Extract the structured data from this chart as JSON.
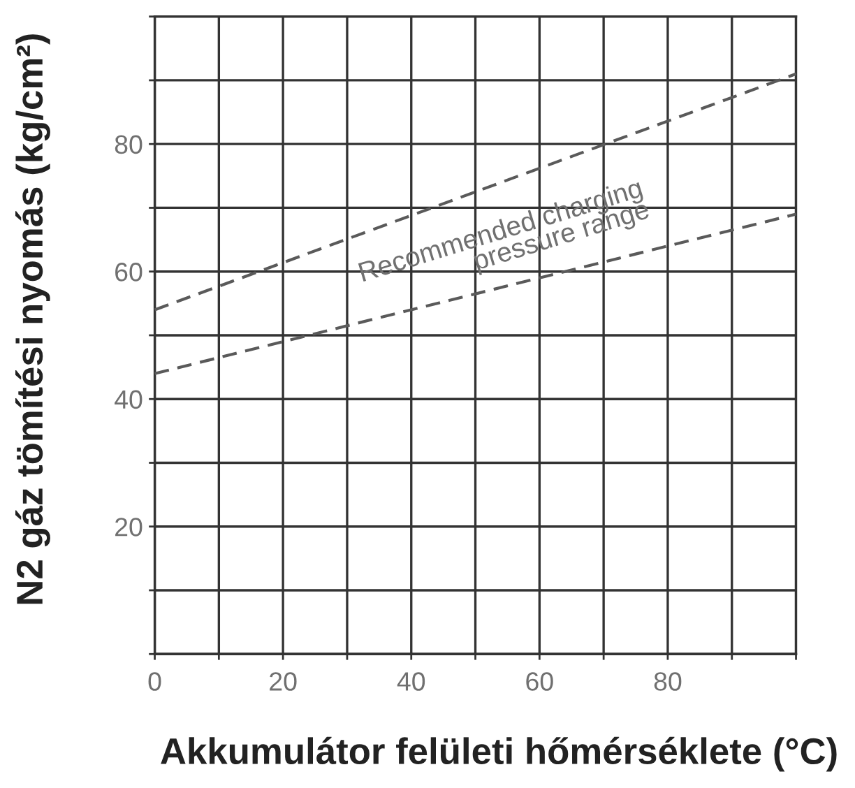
{
  "chart_data": {
    "type": "line",
    "xlabel": "Akkumulátor felületi hőmérséklete (°C)",
    "ylabel": "N2 gáz tömítési nyomás (kg/cm²)",
    "x": [
      0,
      100
    ],
    "series": [
      {
        "values": [
          54,
          91
        ],
        "color": "#5a5a5a"
      },
      {
        "values": [
          44,
          69
        ],
        "color": "#5a5a5a"
      }
    ],
    "xlim": [
      0,
      100
    ],
    "ylim": [
      0,
      100
    ],
    "xticks": [
      0,
      {
        "value": 10,
        "label": null
      },
      20,
      {
        "value": 30,
        "label": null
      },
      40,
      {
        "value": 50,
        "label": null
      },
      60,
      {
        "value": 70,
        "label": null
      },
      80,
      {
        "value": 90,
        "label": null
      },
      {
        "value": 100,
        "label": null
      }
    ],
    "yticks": [
      {
        "value": 0,
        "label": null
      },
      {
        "value": 10,
        "label": null
      },
      20,
      {
        "value": 30,
        "label": null
      },
      40,
      {
        "value": 50,
        "label": null
      },
      60,
      {
        "value": 70,
        "label": null
      },
      80,
      {
        "value": 90,
        "label": null
      },
      {
        "value": 100,
        "label": null
      }
    ],
    "grid": true,
    "line_style": "dashed",
    "marker": "none",
    "annotations": [
      "Recommended charging\npressure range"
    ]
  }
}
